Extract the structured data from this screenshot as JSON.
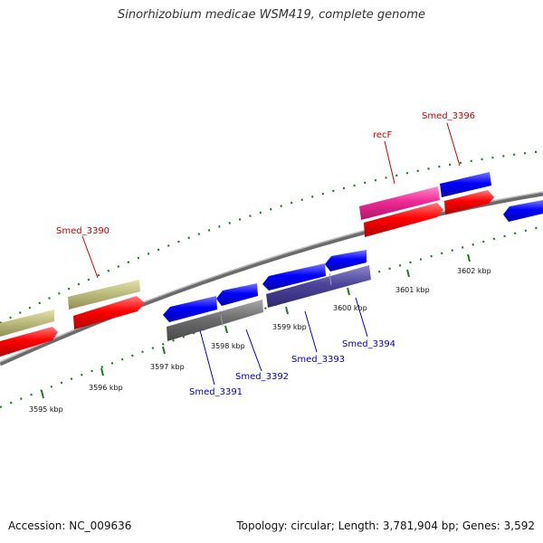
{
  "title": "Sinorhizobium medicae WSM419, complete genome",
  "footer": {
    "accession": "Accession: NC_009636",
    "summary": "Topology: circular; Length: 3,781,904 bp; Genes: 3,592"
  },
  "colors": {
    "backbone": "#8a8a8a",
    "tick": "#1f7a1f",
    "label_forward": "#cc0000",
    "label_reverse": "#0000cc"
  },
  "scale": {
    "ticks": [
      {
        "kbp": 3595,
        "text": "3595 kbp"
      },
      {
        "kbp": 3596,
        "text": "3596 kbp"
      },
      {
        "kbp": 3597,
        "text": "3597 kbp"
      },
      {
        "kbp": 3598,
        "text": "3598 kbp"
      },
      {
        "kbp": 3599,
        "text": "3599 kbp"
      },
      {
        "kbp": 3600,
        "text": "3600 kbp"
      },
      {
        "kbp": 3601,
        "text": "3601 kbp"
      },
      {
        "kbp": 3602,
        "text": "3602 kbp"
      }
    ]
  },
  "labels": {
    "smed_3390": "Smed_3390",
    "recF": "recF",
    "smed_3396": "Smed_3396",
    "smed_3391": "Smed_3391",
    "smed_3392": "Smed_3392",
    "smed_3393": "Smed_3393",
    "smed_3394": "Smed_3394"
  }
}
